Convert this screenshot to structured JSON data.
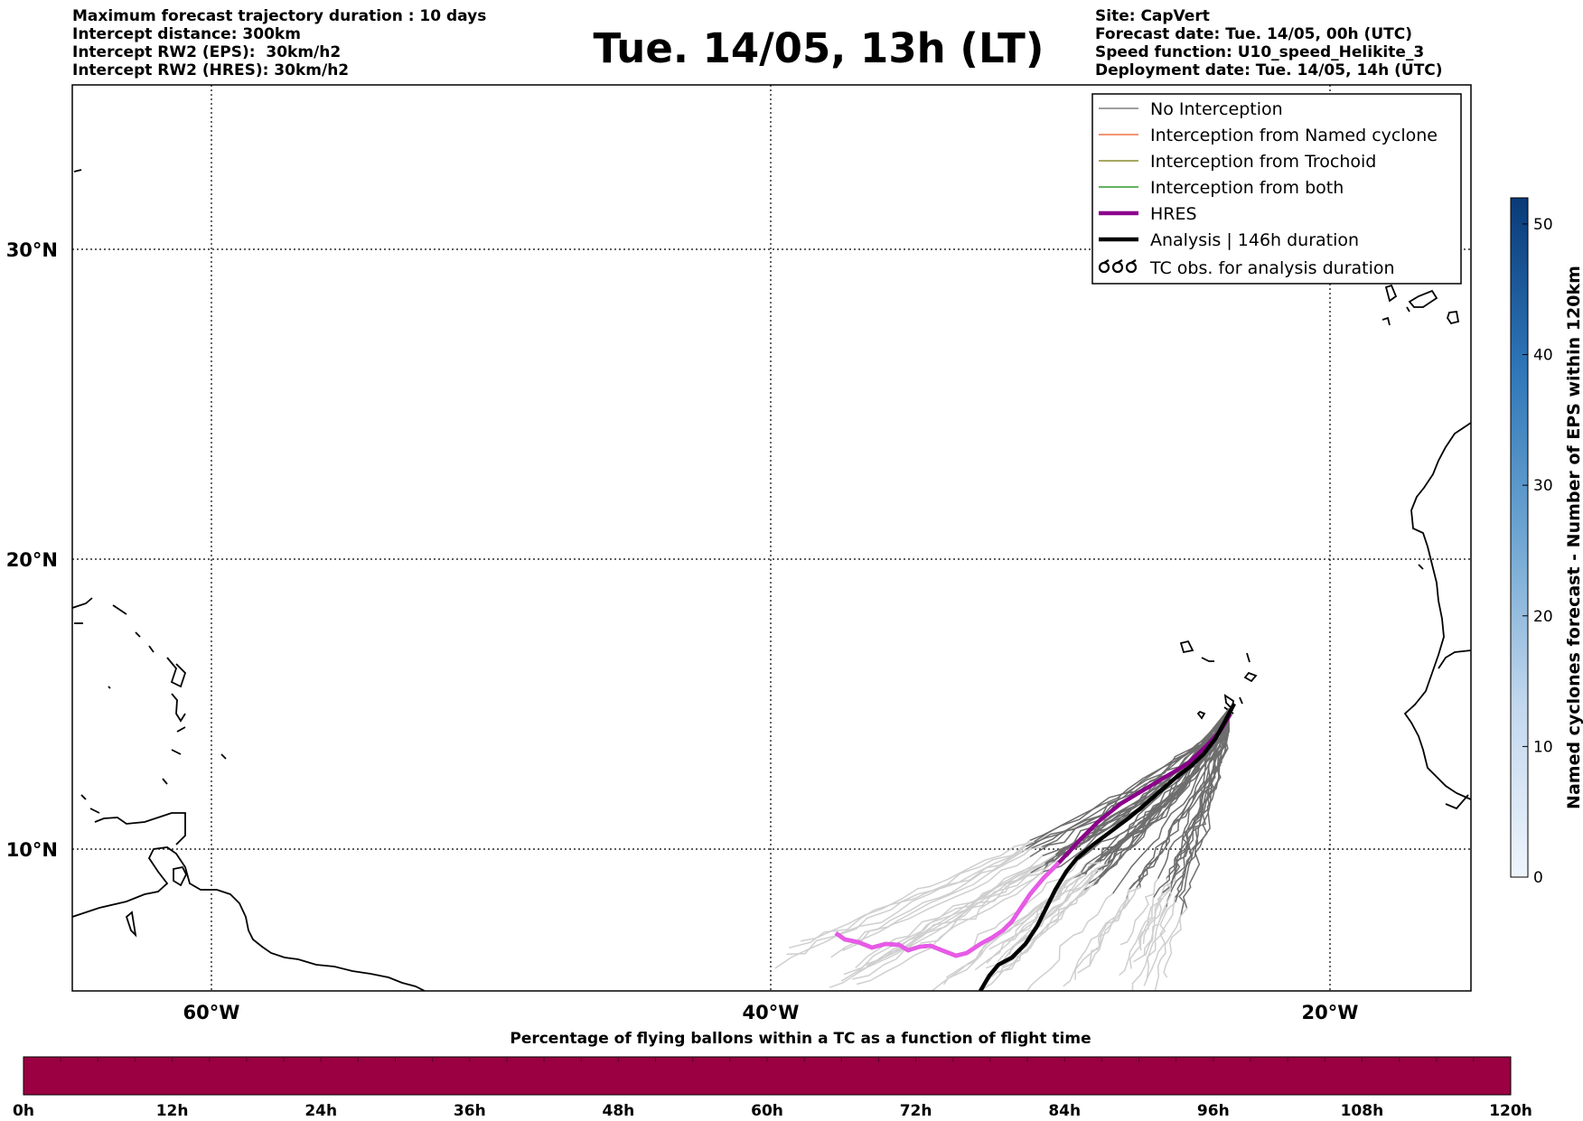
{
  "header_left": [
    "Maximum forecast trajectory duration : 10 days",
    "Intercept distance: 300km",
    "Intercept RW2 (EPS):  30km/h2",
    "Intercept RW2 (HRES): 30km/h2"
  ],
  "header_right": [
    "Site: CapVert",
    "Forecast date: Tue. 14/05, 00h (UTC)",
    "Speed function: U10_speed_Helikite_3",
    "Deployment date: Tue. 14/05, 14h (UTC)"
  ],
  "title": "Tue. 14/05, 13h (LT)",
  "map": {
    "lat_ticks": [
      "30°N",
      "20°N",
      "10°N"
    ],
    "lon_ticks": [
      "60°W",
      "40°W",
      "20°W"
    ],
    "gridlines": true
  },
  "legend": {
    "placement": "top-right",
    "items": [
      {
        "label": "No Interception",
        "color": "#7f7f7f"
      },
      {
        "label": "Interception from Named cyclone",
        "color": "#f07040"
      },
      {
        "label": "Interception from Trochoid",
        "color": "#8b8b2b"
      },
      {
        "label": "Interception from both",
        "color": "#2e9a2e"
      },
      {
        "label": "HRES",
        "color": "#8b008b"
      },
      {
        "label": "Analysis | 146h duration",
        "color": "#000000"
      },
      {
        "label": "TC obs. for analysis duration",
        "color": "#000000"
      }
    ]
  },
  "colorbar_right": {
    "label": "Named cyclones forecast - Number of EPS within 120km",
    "ticks": [
      "0",
      "10",
      "20",
      "30",
      "40",
      "50"
    ],
    "range": [
      0,
      52
    ],
    "colors": {
      "low": "#eef4fc",
      "high": "#0a3a78"
    }
  },
  "colorbar_bottom": {
    "title": "Percentage of flying ballons within a TC as a function of flight time",
    "ticks": [
      "0h",
      "12h",
      "24h",
      "36h",
      "48h",
      "60h",
      "72h",
      "84h",
      "96h",
      "108h",
      "120h"
    ],
    "fill_color": "#9b0042"
  }
}
